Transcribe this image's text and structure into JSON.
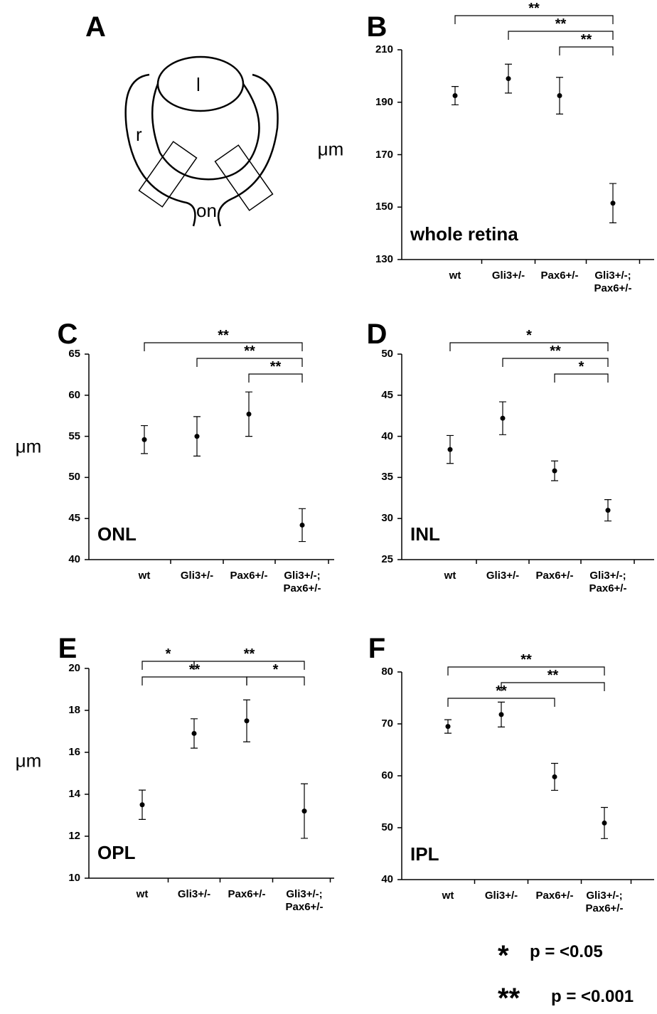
{
  "diagram": {
    "panel": "A",
    "labels": [
      "l",
      "r",
      "on"
    ]
  },
  "chart_data": [
    {
      "type": "errorbar",
      "panel": "B",
      "label": "whole retina",
      "ylabel": "μm",
      "categories": [
        "wt",
        "Gli3+/-",
        "Pax6+/-",
        "Gli3+/-;\nPax6+/-"
      ],
      "values": [
        192.5,
        199,
        192.5,
        151.5
      ],
      "errors": [
        3.5,
        5.5,
        7,
        7.5
      ],
      "color": "#000000",
      "ylim": [
        130,
        210
      ],
      "yticks": [
        130,
        150,
        170,
        190,
        210
      ],
      "brackets": [
        {
          "from": 0,
          "to": 3,
          "label": "**"
        },
        {
          "from": 1,
          "to": 3,
          "label": "**"
        },
        {
          "from": 2,
          "to": 3,
          "label": "**"
        }
      ]
    },
    {
      "type": "errorbar",
      "panel": "C",
      "label": "ONL",
      "ylabel": "μm",
      "categories": [
        "wt",
        "Gli3+/-",
        "Pax6+/-",
        "Gli3+/-;\nPax6+/-"
      ],
      "values": [
        54.6,
        55,
        57.7,
        44.2
      ],
      "errors": [
        1.7,
        2.4,
        2.7,
        2
      ],
      "color": "#000000",
      "ylim": [
        40,
        65
      ],
      "yticks": [
        40,
        45,
        50,
        55,
        60,
        65
      ],
      "brackets": [
        {
          "from": 0,
          "to": 3,
          "label": "**"
        },
        {
          "from": 1,
          "to": 3,
          "label": "**"
        },
        {
          "from": 2,
          "to": 3,
          "label": "**"
        }
      ]
    },
    {
      "type": "errorbar",
      "panel": "D",
      "label": "INL",
      "categories": [
        "wt",
        "Gli3+/-",
        "Pax6+/-",
        "Gli3+/-;\nPax6+/-"
      ],
      "values": [
        38.4,
        42.2,
        35.8,
        31
      ],
      "errors": [
        1.7,
        2,
        1.2,
        1.3
      ],
      "color": "#000000",
      "ylim": [
        25,
        50
      ],
      "yticks": [
        25,
        30,
        35,
        40,
        45,
        50
      ],
      "brackets": [
        {
          "from": 0,
          "to": 3,
          "label": "*"
        },
        {
          "from": 1,
          "to": 3,
          "label": "**"
        },
        {
          "from": 2,
          "to": 3,
          "label": "*"
        }
      ]
    },
    {
      "type": "errorbar",
      "panel": "E",
      "label": "OPL",
      "ylabel": "μm",
      "categories": [
        "wt",
        "Gli3+/-",
        "Pax6+/-",
        "Gli3+/-;\nPax6+/-"
      ],
      "values": [
        13.5,
        16.9,
        17.5,
        13.2
      ],
      "errors": [
        0.7,
        0.7,
        1,
        1.3
      ],
      "color": "#000000",
      "ylim": [
        10,
        20
      ],
      "yticks": [
        10,
        12,
        14,
        16,
        18,
        20
      ],
      "brackets": [
        {
          "from": 0,
          "to": 1,
          "label": "*"
        },
        {
          "from": 1,
          "to": 3,
          "label": "**"
        },
        {
          "from": 0,
          "to": 2,
          "label": "**"
        },
        {
          "from": 2,
          "to": 3,
          "label": "*"
        }
      ]
    },
    {
      "type": "errorbar",
      "panel": "F",
      "label": "IPL",
      "categories": [
        "wt",
        "Gli3+/-",
        "Pax6+/-",
        "Gli3+/-;\nPax6+/-"
      ],
      "values": [
        69.5,
        71.8,
        59.8,
        50.9
      ],
      "errors": [
        1.3,
        2.4,
        2.6,
        3
      ],
      "color": "#000000",
      "ylim": [
        40,
        80
      ],
      "yticks": [
        40,
        50,
        60,
        70,
        80
      ],
      "brackets": [
        {
          "from": 0,
          "to": 3,
          "label": "**"
        },
        {
          "from": 1,
          "to": 3,
          "label": "**"
        },
        {
          "from": 0,
          "to": 2,
          "label": "**"
        }
      ]
    }
  ],
  "significance_key": [
    {
      "symbol": "*",
      "text": "p = <0.05"
    },
    {
      "symbol": "**",
      "text": "p = <0.001"
    }
  ]
}
